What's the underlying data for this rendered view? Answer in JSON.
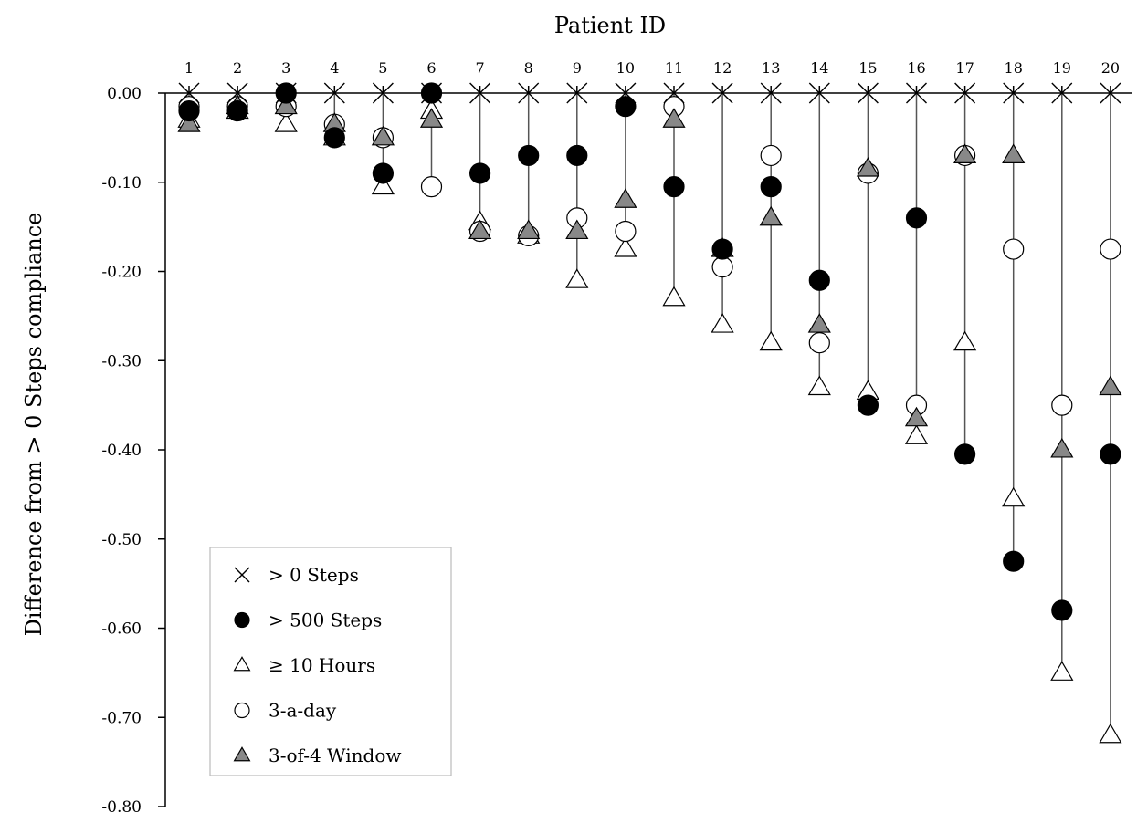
{
  "chart_data": {
    "type": "scatter",
    "title": "",
    "xlabel": "Patient ID",
    "ylabel": "Difference from > 0 Steps compliance",
    "categories": [
      "1",
      "2",
      "3",
      "4",
      "5",
      "6",
      "7",
      "8",
      "9",
      "10",
      "11",
      "12",
      "13",
      "14",
      "15",
      "16",
      "17",
      "18",
      "19",
      "20"
    ],
    "yticks": [
      "0.00",
      "-0.10",
      "-0.20",
      "-0.30",
      "-0.40",
      "-0.50",
      "-0.60",
      "-0.70",
      "-0.80"
    ],
    "ylim": [
      -0.8,
      0.0
    ],
    "grid": false,
    "legend_position": "bottom-left",
    "series": [
      {
        "name": "> 0 Steps",
        "marker": "x",
        "color": "#000000",
        "values": [
          0,
          0,
          0,
          0,
          0,
          0,
          0,
          0,
          0,
          0,
          0,
          0,
          0,
          0,
          0,
          0,
          0,
          0,
          0,
          0
        ]
      },
      {
        "name": "> 500 Steps",
        "marker": "filled-circle",
        "color": "#000000",
        "values": [
          -0.02,
          -0.02,
          0.0,
          -0.05,
          -0.09,
          0.0,
          -0.09,
          -0.07,
          -0.07,
          -0.015,
          -0.105,
          -0.175,
          -0.105,
          -0.21,
          -0.35,
          -0.14,
          -0.405,
          -0.525,
          -0.58,
          -0.405
        ]
      },
      {
        "name": "≥ 10 Hours",
        "marker": "open-triangle",
        "color": "#ffffff",
        "values": [
          -0.03,
          -0.02,
          -0.035,
          -0.05,
          -0.105,
          -0.02,
          -0.145,
          -0.16,
          -0.21,
          -0.175,
          -0.23,
          -0.26,
          -0.28,
          -0.33,
          -0.335,
          -0.385,
          -0.28,
          -0.455,
          -0.65,
          -0.72
        ]
      },
      {
        "name": "3-a-day",
        "marker": "open-circle",
        "color": "#ffffff",
        "values": [
          -0.015,
          -0.015,
          -0.015,
          -0.035,
          -0.05,
          -0.105,
          -0.155,
          -0.16,
          -0.14,
          -0.155,
          -0.015,
          -0.195,
          -0.07,
          -0.28,
          -0.09,
          -0.35,
          -0.07,
          -0.175,
          -0.35,
          -0.175
        ]
      },
      {
        "name": "3-of-4 Window",
        "marker": "gray-triangle",
        "color": "#888888",
        "values": [
          -0.035,
          -0.015,
          -0.015,
          -0.035,
          -0.05,
          -0.03,
          -0.155,
          -0.155,
          -0.155,
          -0.12,
          -0.03,
          -0.175,
          -0.14,
          -0.26,
          -0.085,
          -0.365,
          -0.07,
          -0.07,
          -0.4,
          -0.33
        ]
      }
    ]
  }
}
